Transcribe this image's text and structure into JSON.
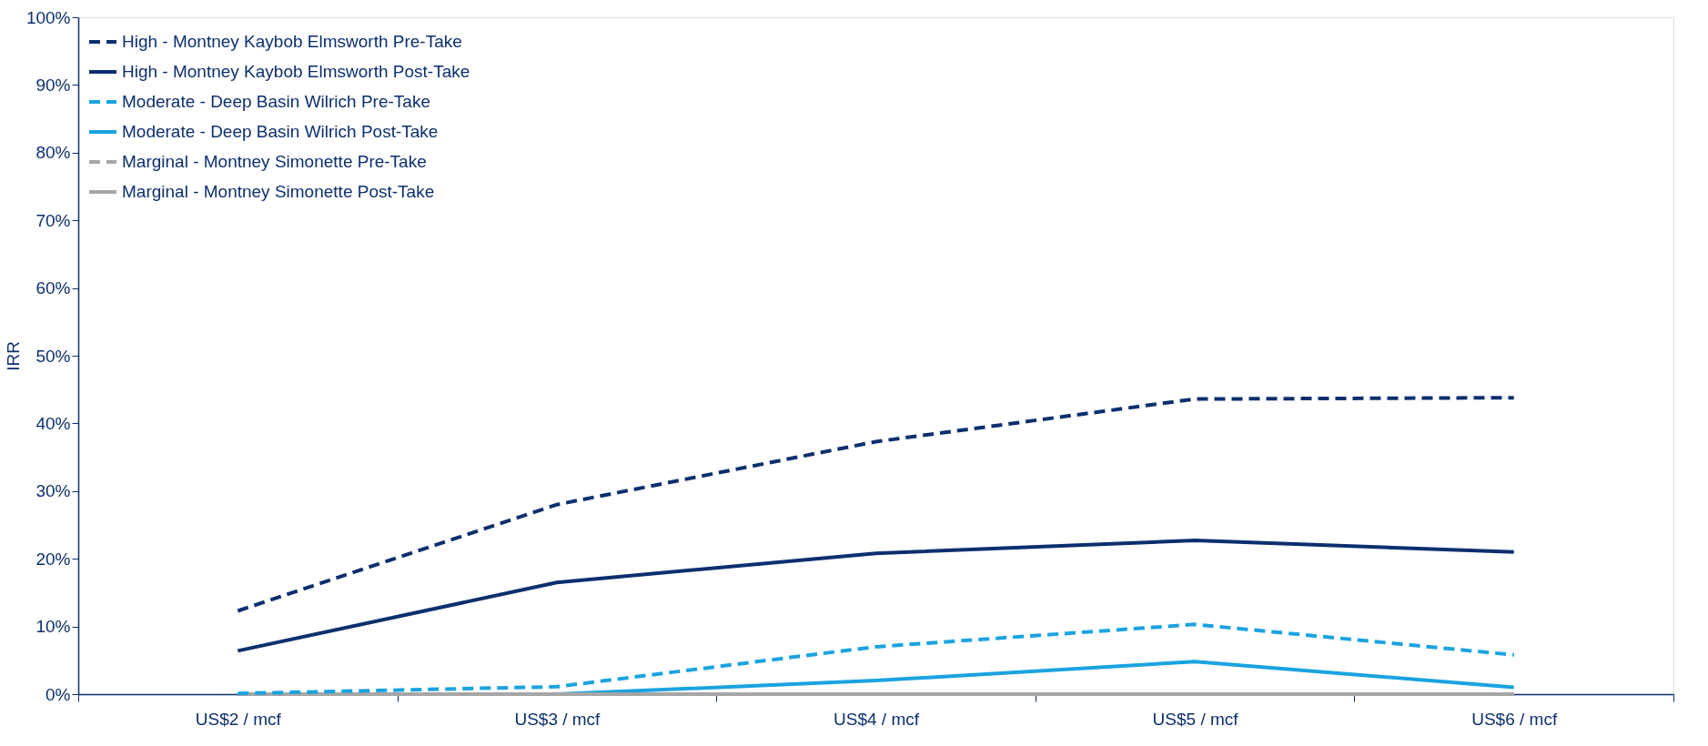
{
  "chart_data": {
    "type": "line",
    "ylabel": "IRR",
    "categories": [
      "US$2 / mcf",
      "US$3 / mcf",
      "US$4 / mcf",
      "US$5 / mcf",
      "US$6 / mcf"
    ],
    "ylim": [
      0,
      1
    ],
    "yticks": [
      {
        "value": 0,
        "label": "0%"
      },
      {
        "value": 0.1,
        "label": "10%"
      },
      {
        "value": 0.2,
        "label": "20%"
      },
      {
        "value": 0.3,
        "label": "30%"
      },
      {
        "value": 0.4,
        "label": "40%"
      },
      {
        "value": 0.5,
        "label": "50%"
      },
      {
        "value": 0.6,
        "label": "60%"
      },
      {
        "value": 0.7,
        "label": "70%"
      },
      {
        "value": 0.8,
        "label": "80%"
      },
      {
        "value": 0.9,
        "label": "90%"
      },
      {
        "value": 1,
        "label": "100%"
      }
    ],
    "grid": false,
    "legend": "top left",
    "marker": "none",
    "series": [
      {
        "name": "High - Montney Kaybob Elmsworth Pre-Take",
        "color": "#0c2f6e",
        "line_style": "dashed",
        "values": [
          0.123,
          0.28,
          0.373,
          0.436,
          0.438
        ]
      },
      {
        "name": "High - Montney Kaybob Elmsworth Post-Take",
        "color": "#0c2f6e",
        "line_style": "solid",
        "values": [
          0.064,
          0.165,
          0.208,
          0.227,
          0.21
        ]
      },
      {
        "name": "Moderate - Deep Basin Wilrich Pre-Take",
        "color": "#1aa3e0",
        "line_style": "dashed",
        "values": [
          0.001,
          0.011,
          0.07,
          0.103,
          0.058
        ]
      },
      {
        "name": "Moderate - Deep Basin Wilrich Post-Take",
        "color": "#1aa3e0",
        "line_style": "solid",
        "values": [
          0.0,
          0.0,
          0.02,
          0.048,
          0.01
        ]
      },
      {
        "name": "Marginal - Montney Simonette Pre-Take",
        "color": "#a6a6a6",
        "line_style": "dashed",
        "values": [
          null,
          null,
          null,
          null,
          null
        ]
      },
      {
        "name": "Marginal - Montney Simonette Post-Take",
        "color": "#a6a6a6",
        "line_style": "solid",
        "values": [
          0,
          0,
          0,
          0,
          0
        ]
      }
    ]
  }
}
